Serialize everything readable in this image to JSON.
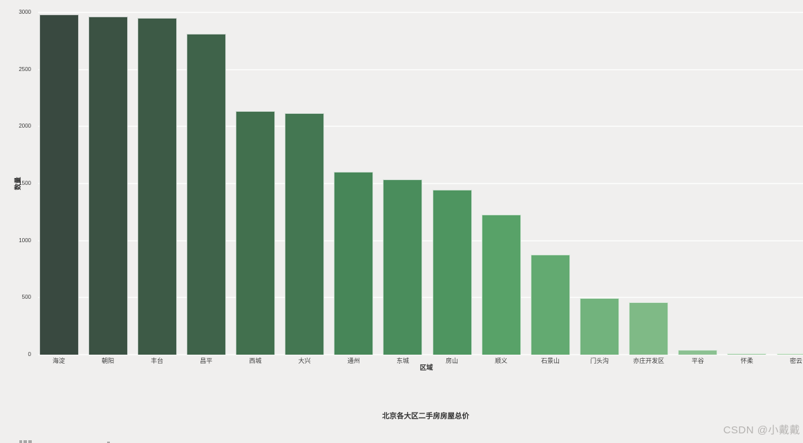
{
  "chart_data": {
    "type": "bar",
    "title": "北京各大区二手房房屋总价",
    "xlabel": "区域",
    "ylabel": "数量",
    "categories": [
      "海淀",
      "朝阳",
      "丰台",
      "昌平",
      "西城",
      "大兴",
      "通州",
      "东城",
      "房山",
      "顺义",
      "石景山",
      "门头沟",
      "亦庄开发区",
      "平谷",
      "怀柔",
      "密云"
    ],
    "values": [
      2980,
      2965,
      2950,
      2810,
      2135,
      2115,
      1600,
      1535,
      1445,
      1225,
      880,
      495,
      460,
      40,
      15,
      10
    ],
    "bar_colors": [
      "#394940",
      "#3b5243",
      "#3d5a46",
      "#3f634a",
      "#42704e",
      "#447752",
      "#478658",
      "#4a8d5c",
      "#4e9560",
      "#58a268",
      "#63aa71",
      "#72b37d",
      "#7fba86",
      "#8cc192",
      "#9ccaa0",
      "#abd3ad"
    ],
    "ylim": [
      0,
      3000
    ],
    "yticks": [
      0,
      500,
      1000,
      1500,
      2000,
      2500,
      3000
    ],
    "grid": "horizontal",
    "gridline_color": "#fafaf9",
    "plot_background": "#f0efee",
    "legend": "none"
  },
  "watermark": {
    "text": "CSDN @小戴戴"
  }
}
